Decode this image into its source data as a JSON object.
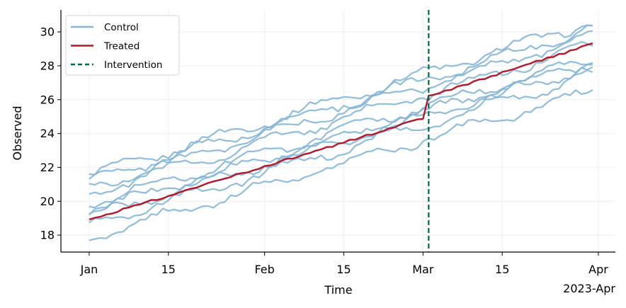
{
  "chart_data": {
    "type": "line",
    "xlabel": "Time",
    "ylabel": "Observed",
    "x_offset_label": "2023-Apr",
    "x": [
      "2023-01-01",
      "2023-01-02",
      "2023-01-03",
      "2023-01-04",
      "2023-01-05",
      "2023-01-06",
      "2023-01-07",
      "2023-01-08",
      "2023-01-09",
      "2023-01-10",
      "2023-01-11",
      "2023-01-12",
      "2023-01-13",
      "2023-01-14",
      "2023-01-15",
      "2023-01-16",
      "2023-01-17",
      "2023-01-18",
      "2023-01-19",
      "2023-01-20",
      "2023-01-21",
      "2023-01-22",
      "2023-01-23",
      "2023-01-24",
      "2023-01-25",
      "2023-01-26",
      "2023-01-27",
      "2023-01-28",
      "2023-01-29",
      "2023-01-30",
      "2023-01-31",
      "2023-02-01",
      "2023-02-02",
      "2023-02-03",
      "2023-02-04",
      "2023-02-05",
      "2023-02-06",
      "2023-02-07",
      "2023-02-08",
      "2023-02-09",
      "2023-02-10",
      "2023-02-11",
      "2023-02-12",
      "2023-02-13",
      "2023-02-14",
      "2023-02-15",
      "2023-02-16",
      "2023-02-17",
      "2023-02-18",
      "2023-02-19",
      "2023-02-20",
      "2023-02-21",
      "2023-02-22",
      "2023-02-23",
      "2023-02-24",
      "2023-02-25",
      "2023-02-26",
      "2023-02-27",
      "2023-02-28",
      "2023-03-01",
      "2023-03-02",
      "2023-03-03",
      "2023-03-04",
      "2023-03-05",
      "2023-03-06",
      "2023-03-07",
      "2023-03-08",
      "2023-03-09",
      "2023-03-10",
      "2023-03-11",
      "2023-03-12",
      "2023-03-13",
      "2023-03-14",
      "2023-03-15",
      "2023-03-16",
      "2023-03-17",
      "2023-03-18",
      "2023-03-19",
      "2023-03-20",
      "2023-03-21",
      "2023-03-22",
      "2023-03-23",
      "2023-03-24",
      "2023-03-25",
      "2023-03-26",
      "2023-03-27",
      "2023-03-28",
      "2023-03-29",
      "2023-03-30",
      "2023-03-31"
    ],
    "x_ticks": [
      {
        "date": "2023-01-01",
        "label": "Jan"
      },
      {
        "date": "2023-01-15",
        "label": "15"
      },
      {
        "date": "2023-02-01",
        "label": "Feb"
      },
      {
        "date": "2023-02-15",
        "label": "15"
      },
      {
        "date": "2023-03-01",
        "label": "Mar"
      },
      {
        "date": "2023-03-15",
        "label": "15"
      },
      {
        "date": "2023-04-01",
        "label": "Apr"
      }
    ],
    "xlim": [
      "2022-12-27",
      "2023-04-04"
    ],
    "ylim": [
      17,
      31.3
    ],
    "y_ticks": [
      18,
      20,
      22,
      24,
      26,
      28,
      30
    ],
    "grid": true,
    "legend": {
      "position": "top-left",
      "entries": [
        {
          "label": "Control",
          "color": "#86b6d6",
          "style": "solid"
        },
        {
          "label": "Treated",
          "color": "#b2182b",
          "style": "solid"
        },
        {
          "label": "Intervention",
          "color": "#006b4a",
          "style": "dashed"
        }
      ]
    },
    "intervention_date": "2023-03-02",
    "control_series": [
      {
        "start": 21.5,
        "end": 30.6,
        "phase": 0.0
      },
      {
        "start": 21.2,
        "end": 30.2,
        "phase": 1.1
      },
      {
        "start": 20.8,
        "end": 29.8,
        "phase": 2.3
      },
      {
        "start": 20.5,
        "end": 29.2,
        "phase": 3.0
      },
      {
        "start": 19.9,
        "end": 28.4,
        "phase": 4.2
      },
      {
        "start": 19.4,
        "end": 28.2,
        "phase": 5.1
      },
      {
        "start": 19.1,
        "end": 28.0,
        "phase": 0.7
      },
      {
        "start": 18.6,
        "end": 27.5,
        "phase": 1.9
      },
      {
        "start": 17.9,
        "end": 26.5,
        "phase": 3.6
      }
    ],
    "treated": {
      "name": "Treated",
      "start": 18.9,
      "pre_end": 24.9,
      "post_start": 26.2,
      "end": 29.3
    }
  }
}
